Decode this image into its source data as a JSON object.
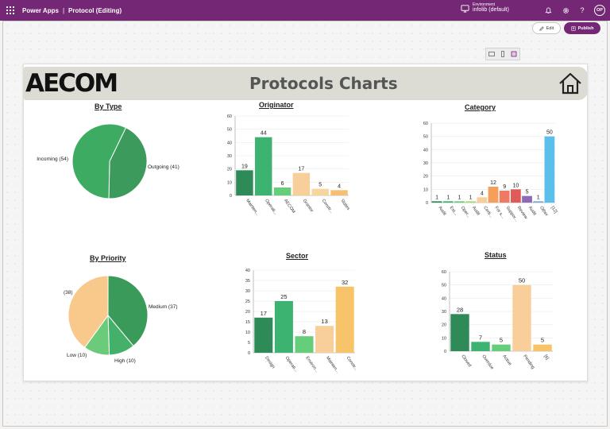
{
  "topbar": {
    "app_name": "Power Apps",
    "separator": "|",
    "doc_title": "Protocol (Editing)",
    "env_label": "Environment",
    "env_value": "infolib (default)",
    "avatar_initials": "OP",
    "bar_color": "#742774",
    "icons": [
      "waffle-icon",
      "environment-icon",
      "bell-icon",
      "settings-icon",
      "help-icon"
    ]
  },
  "toolbar": {
    "edit_label": "Edit",
    "publish_label": "Publish",
    "device_icons": [
      "tablet-icon",
      "phone-icon",
      "screen-icon"
    ]
  },
  "header": {
    "logo_text": "AECOM",
    "title": "Protocols Charts",
    "home_icon": "home-icon"
  },
  "chart_data": [
    {
      "id": "by_type",
      "type": "pie",
      "title": "By Type",
      "labels": [
        "Incoming (54)",
        "Outgoing (41)"
      ],
      "values": [
        54,
        41
      ],
      "colors": [
        "#3dab62",
        "#3b9a5c"
      ]
    },
    {
      "id": "originator",
      "type": "bar",
      "title": "Originator",
      "categories": [
        "Mainten...",
        "Operati...",
        "AECOM",
        "Grantor",
        "Constr...",
        "States"
      ],
      "values": [
        19,
        44,
        6,
        17,
        5,
        4
      ],
      "colors": [
        "#2e8b57",
        "#3cb371",
        "#66cd7a",
        "#f8cf9b",
        "#f9d59e",
        "#f5c075"
      ],
      "ylim": [
        0,
        60
      ],
      "yticks": [
        "0",
        "10",
        "20",
        "30",
        "40",
        "50",
        "60"
      ]
    },
    {
      "id": "category",
      "type": "bar",
      "title": "Category",
      "categories": [
        "Audit",
        "Est...",
        "Oper...",
        "Audit",
        "Certi...",
        "For s...",
        "Suppor...",
        "Review",
        "Audit",
        "Other",
        "[12]"
      ],
      "values": [
        1,
        1,
        1,
        1,
        4,
        12,
        9,
        10,
        5,
        1,
        50
      ],
      "colors": [
        "#2e8b57",
        "#3cb371",
        "#66cd7a",
        "#a8d870",
        "#f8cf9b",
        "#f5a05a",
        "#ef7a63",
        "#e05a5a",
        "#8e6bb8",
        "#7aa7d8",
        "#5bbfec"
      ],
      "ylim": [
        0,
        60
      ],
      "yticks": [
        "0",
        "10",
        "20",
        "30",
        "40",
        "50",
        "60"
      ]
    },
    {
      "id": "by_priority",
      "type": "pie",
      "title": "By Priority",
      "labels": [
        "Medium (37)",
        "High (10)",
        "Low (10)",
        "(38)"
      ],
      "values": [
        37,
        10,
        10,
        38
      ],
      "colors": [
        "#3a9a5a",
        "#44b16a",
        "#6ccb7a",
        "#f8c98a"
      ]
    },
    {
      "id": "sector",
      "type": "bar",
      "title": "Sector",
      "categories": [
        "Design",
        "Operati...",
        "Environ...",
        "Mainten...",
        "Constr..."
      ],
      "values": [
        17,
        25,
        8,
        13,
        32
      ],
      "colors": [
        "#2e8b57",
        "#3cb371",
        "#66cd7a",
        "#f8cf9b",
        "#f7c46a"
      ],
      "ylim": [
        0,
        40
      ],
      "yticks": [
        "0",
        "5",
        "10",
        "15",
        "20",
        "25",
        "30",
        "35",
        "40"
      ]
    },
    {
      "id": "status",
      "type": "bar",
      "title": "Status",
      "categories": [
        "Closed",
        "Overdue",
        "Active",
        "Pending",
        "[6]"
      ],
      "values": [
        28,
        7,
        5,
        50,
        5
      ],
      "colors": [
        "#2e8b57",
        "#3cb371",
        "#66cd7a",
        "#f8cf9b",
        "#f7c46a"
      ],
      "ylim": [
        0,
        60
      ],
      "yticks": [
        "0",
        "10",
        "20",
        "30",
        "40",
        "50",
        "60"
      ]
    }
  ]
}
